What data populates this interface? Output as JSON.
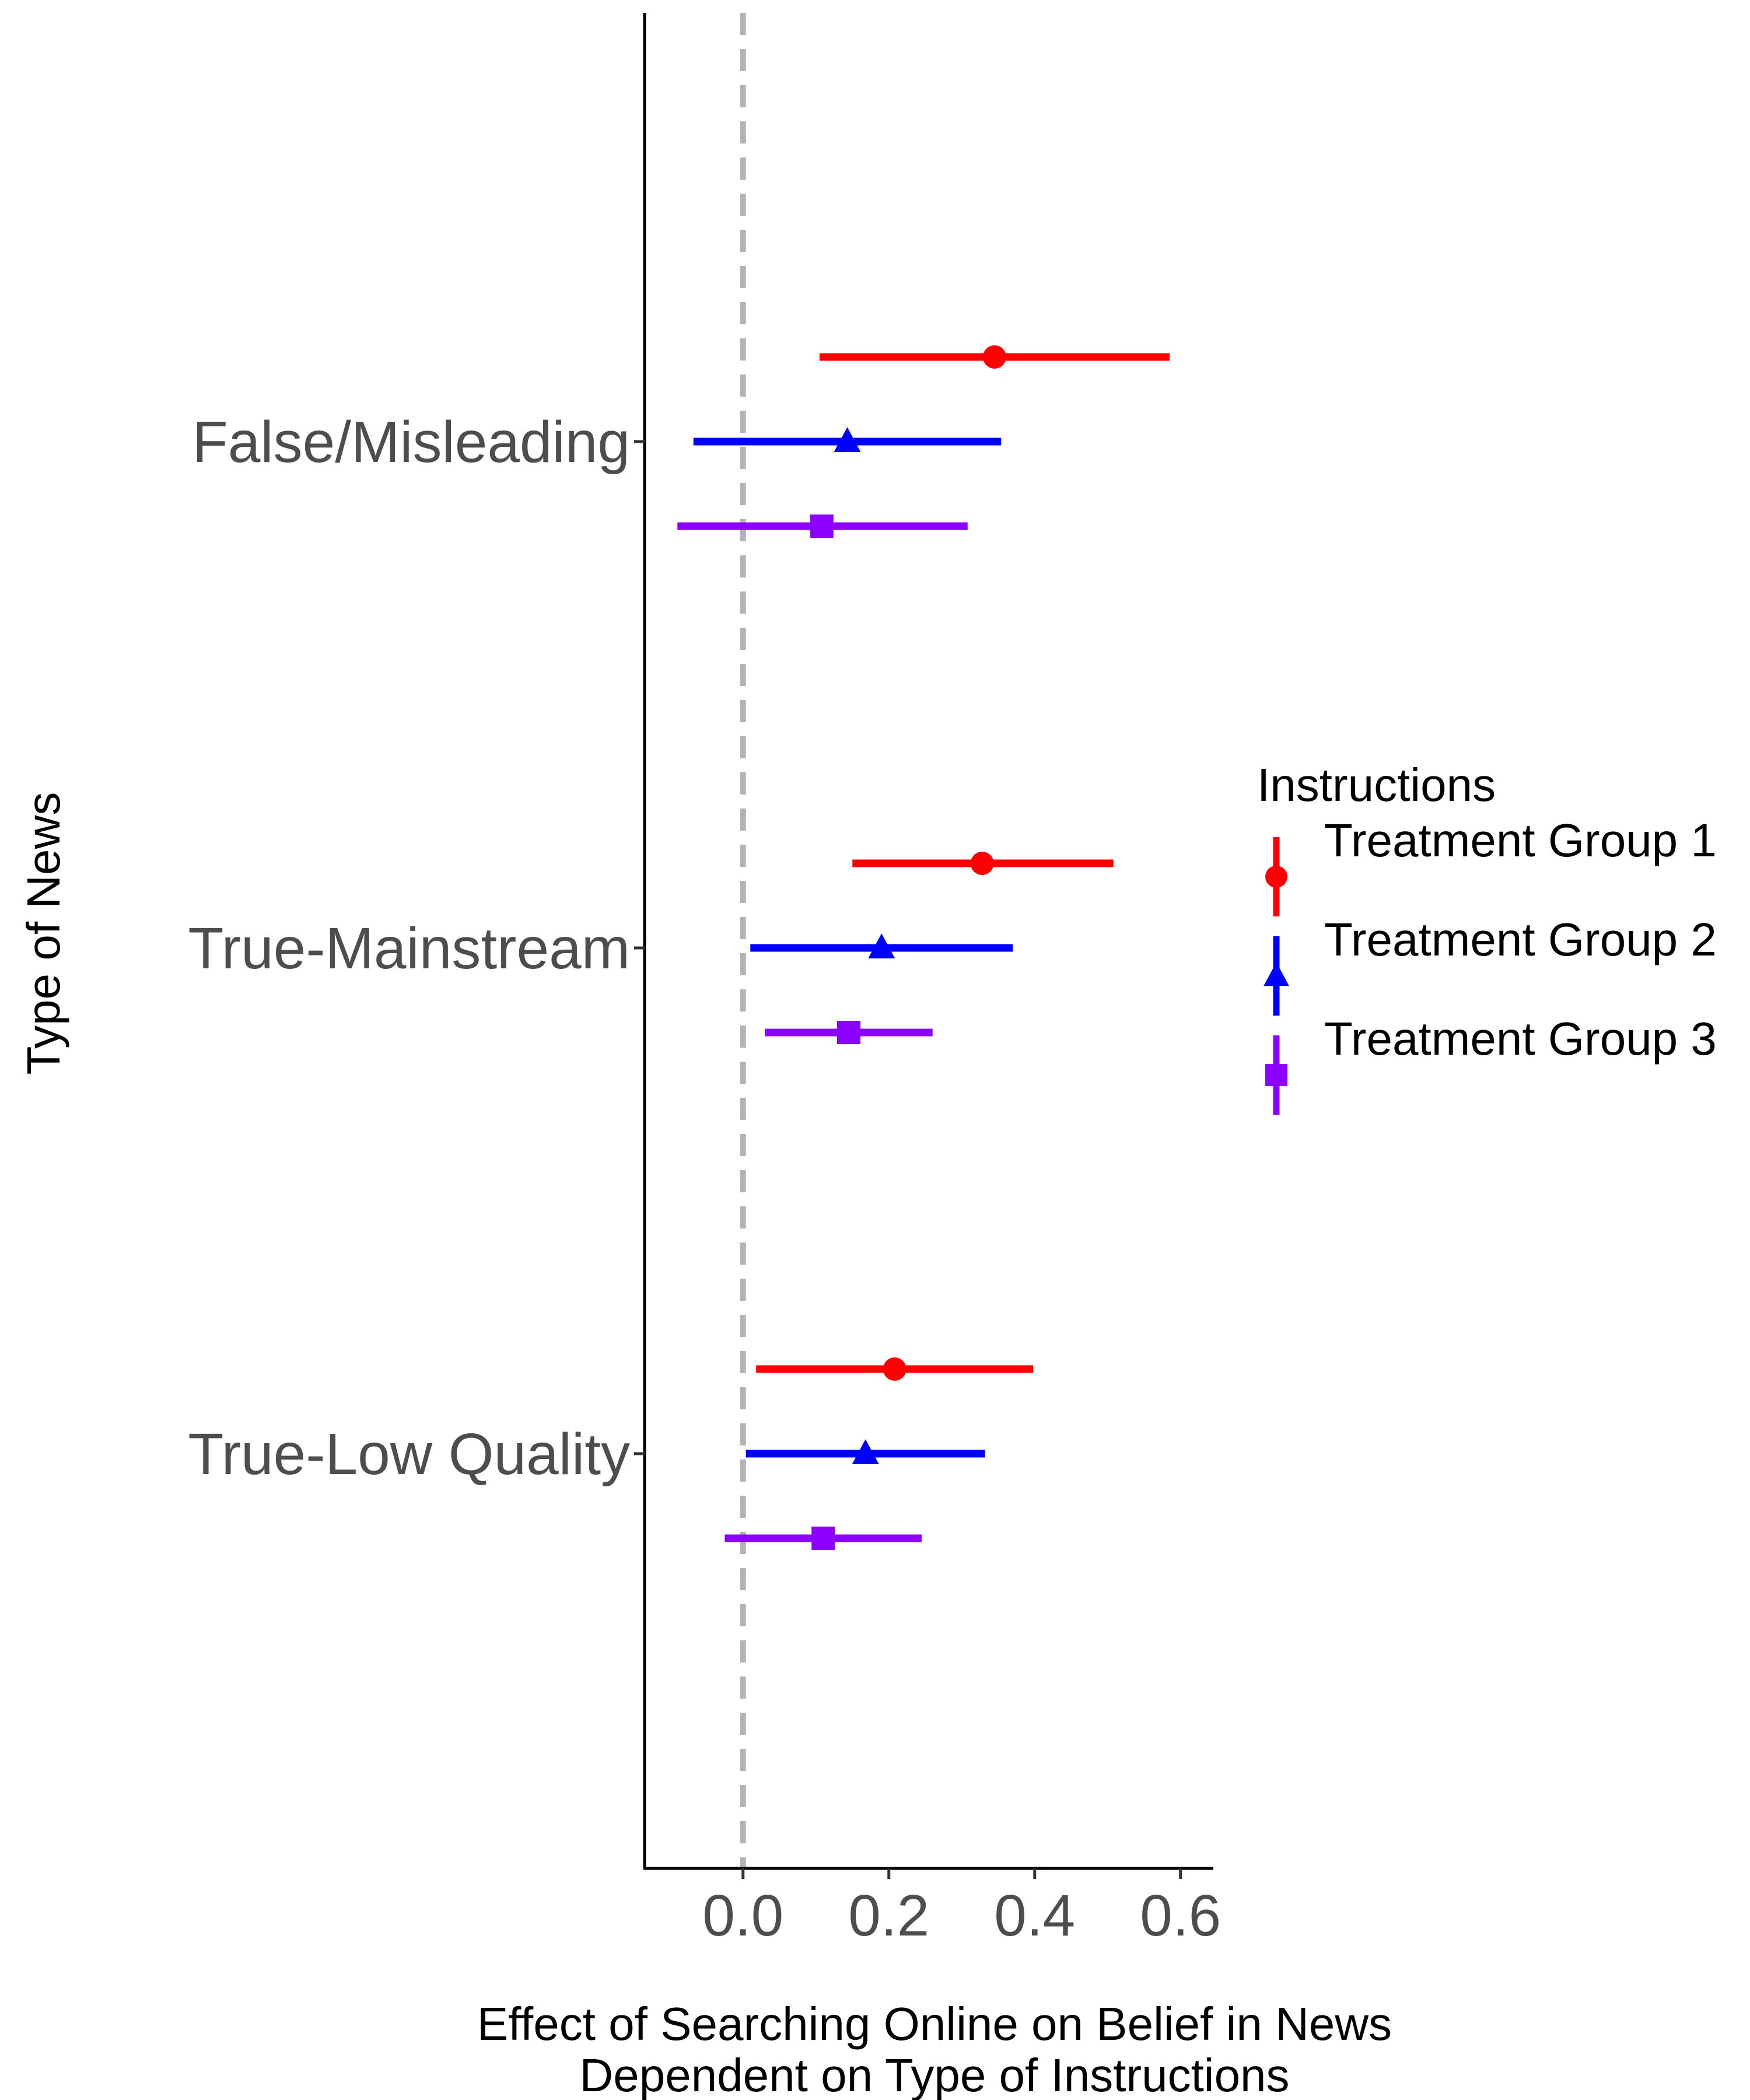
{
  "chart_data": {
    "type": "scatter",
    "subtype": "coefficient-plot-with-confidence-intervals",
    "xlabel_lines": [
      "Effect of Searching Online on Belief in News",
      "Dependent on Type of Instructions"
    ],
    "ylabel": "Type of News",
    "xlim": [
      -0.135,
      0.645
    ],
    "x_ticks": [
      0.0,
      0.2,
      0.4,
      0.6
    ],
    "x_tick_labels": [
      "0.0",
      "0.2",
      "0.4",
      "0.6"
    ],
    "categories": [
      "False/Misleading",
      "True-Mainstream",
      "True-Low Quality"
    ],
    "reference_line": {
      "x": 0,
      "style": "dashed",
      "color": "#b3b3b3"
    },
    "grid": false,
    "legend": {
      "title": "Instructions",
      "position": "right"
    },
    "series": [
      {
        "name": "Treatment Group 1",
        "color": "#ff0000",
        "shape": "circle",
        "points": [
          {
            "category": "False/Misleading",
            "estimate": 0.345,
            "low": 0.105,
            "high": 0.585
          },
          {
            "category": "True-Mainstream",
            "estimate": 0.328,
            "low": 0.15,
            "high": 0.508
          },
          {
            "category": "True-Low Quality",
            "estimate": 0.208,
            "low": 0.018,
            "high": 0.398
          }
        ]
      },
      {
        "name": "Treatment Group 2",
        "color": "#0000ff",
        "shape": "triangle",
        "points": [
          {
            "category": "False/Misleading",
            "estimate": 0.143,
            "low": -0.068,
            "high": 0.354
          },
          {
            "category": "True-Mainstream",
            "estimate": 0.19,
            "low": 0.01,
            "high": 0.37
          },
          {
            "category": "True-Low Quality",
            "estimate": 0.168,
            "low": 0.004,
            "high": 0.332
          }
        ]
      },
      {
        "name": "Treatment Group 3",
        "color": "#8b00ff",
        "shape": "square",
        "points": [
          {
            "category": "False/Misleading",
            "estimate": 0.108,
            "low": -0.09,
            "high": 0.308
          },
          {
            "category": "True-Mainstream",
            "estimate": 0.145,
            "low": 0.03,
            "high": 0.26
          },
          {
            "category": "True-Low Quality",
            "estimate": 0.11,
            "low": -0.025,
            "high": 0.245
          }
        ]
      }
    ]
  }
}
